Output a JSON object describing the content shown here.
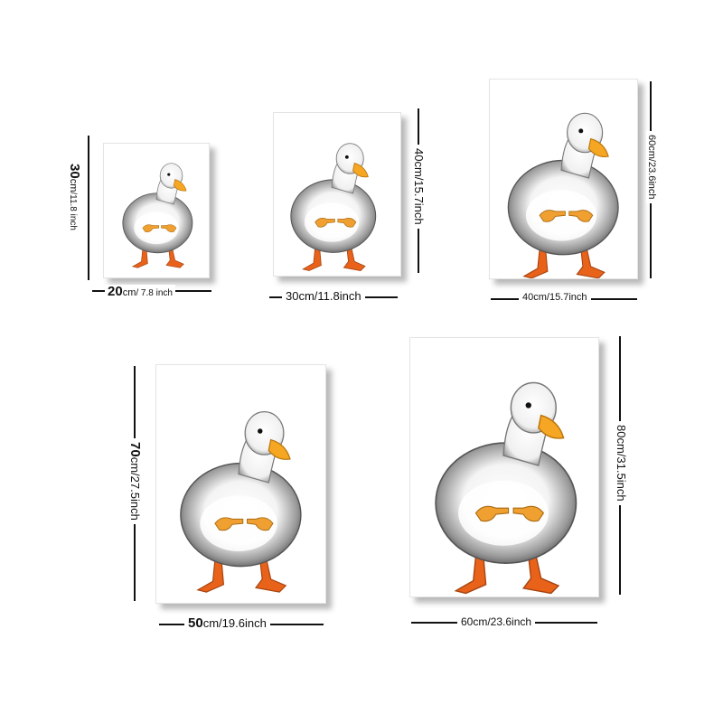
{
  "colors": {
    "background": "#ffffff",
    "duck_body": "#f2f2f2",
    "duck_shade": "#8a8a8a",
    "beak": "#f5a623",
    "feet": "#e8621a",
    "hands": "#f0a030"
  },
  "posters": [
    {
      "id": "p1",
      "width": {
        "prefix": "20",
        "unit": "cm",
        "inch": "/ 7.8 inch"
      },
      "height": {
        "prefix": "30",
        "unit": "cm",
        "inch": "/11.8 inch"
      }
    },
    {
      "id": "p2",
      "width": {
        "text": "30cm/11.8inch"
      },
      "height": {
        "text": "40cm/15.7inch"
      }
    },
    {
      "id": "p3",
      "width": {
        "text": "40cm/15.7inch"
      },
      "height": {
        "text": "60cm/23.6inch"
      }
    },
    {
      "id": "p4",
      "width": {
        "prefix": "50",
        "unit": "cm",
        "inch": "/19.6inch"
      },
      "height": {
        "prefix": "70",
        "unit": "cm",
        "inch": "/27.5inch"
      }
    },
    {
      "id": "p5",
      "width": {
        "text": "60cm/23.6inch"
      },
      "height": {
        "text": "80cm/31.5inch"
      }
    }
  ]
}
